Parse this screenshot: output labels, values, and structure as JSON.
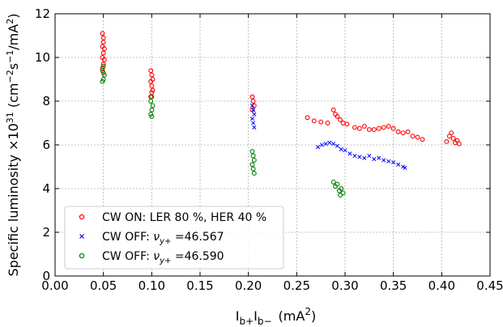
{
  "chart_data": {
    "type": "scatter",
    "xlabel": "I_{b+}I_{b−} (mA^2)",
    "ylabel": "Specific luminosity ×10^31 (cm^{−2}s^{−1}/mA^2)",
    "xlabel_parts": {
      "main": "I",
      "sub1": "b+",
      "mid": "I",
      "sub2": "b−",
      "unit": "(mA",
      "sup": "2",
      "close": ")"
    },
    "ylabel_parts": {
      "pre": "Specific luminosity ×10",
      "exp": "31",
      "unit": " (cm",
      "e1": "−2",
      "s": "s",
      "e2": "−1",
      "end": "/mA",
      "e3": "2",
      "close": ")"
    },
    "xlim": [
      0.0,
      0.45
    ],
    "ylim": [
      0,
      12
    ],
    "xticks": [
      "0.00",
      "0.05",
      "0.10",
      "0.15",
      "0.20",
      "0.25",
      "0.30",
      "0.35",
      "0.40",
      "0.45"
    ],
    "yticks": [
      "0",
      "2",
      "4",
      "6",
      "8",
      "10",
      "12"
    ],
    "grid": true,
    "legend_position": "lower-left",
    "series": [
      {
        "name": "CW ON: LER 80 %, HER 40 %",
        "color": "#ff0000",
        "marker": "circle",
        "points": [
          [
            0.049,
            11.1
          ],
          [
            0.05,
            10.9
          ],
          [
            0.05,
            10.7
          ],
          [
            0.049,
            10.5
          ],
          [
            0.051,
            10.4
          ],
          [
            0.05,
            10.2
          ],
          [
            0.049,
            10.0
          ],
          [
            0.051,
            9.9
          ],
          [
            0.05,
            9.7
          ],
          [
            0.049,
            9.5
          ],
          [
            0.05,
            9.3
          ],
          [
            0.099,
            9.4
          ],
          [
            0.1,
            9.2
          ],
          [
            0.101,
            9.0
          ],
          [
            0.099,
            8.9
          ],
          [
            0.1,
            8.7
          ],
          [
            0.101,
            8.5
          ],
          [
            0.1,
            8.4
          ],
          [
            0.099,
            8.2
          ],
          [
            0.204,
            8.2
          ],
          [
            0.205,
            8.0
          ],
          [
            0.206,
            7.8
          ],
          [
            0.204,
            7.6
          ],
          [
            0.261,
            7.25
          ],
          [
            0.268,
            7.1
          ],
          [
            0.275,
            7.05
          ],
          [
            0.282,
            7.0
          ],
          [
            0.288,
            7.6
          ],
          [
            0.29,
            7.4
          ],
          [
            0.292,
            7.3
          ],
          [
            0.295,
            7.15
          ],
          [
            0.298,
            7.0
          ],
          [
            0.302,
            6.95
          ],
          [
            0.31,
            6.8
          ],
          [
            0.315,
            6.75
          ],
          [
            0.32,
            6.85
          ],
          [
            0.325,
            6.7
          ],
          [
            0.33,
            6.7
          ],
          [
            0.335,
            6.75
          ],
          [
            0.34,
            6.8
          ],
          [
            0.345,
            6.85
          ],
          [
            0.35,
            6.75
          ],
          [
            0.355,
            6.6
          ],
          [
            0.36,
            6.55
          ],
          [
            0.365,
            6.6
          ],
          [
            0.37,
            6.4
          ],
          [
            0.375,
            6.35
          ],
          [
            0.38,
            6.25
          ],
          [
            0.405,
            6.15
          ],
          [
            0.408,
            6.4
          ],
          [
            0.41,
            6.55
          ],
          [
            0.412,
            6.3
          ],
          [
            0.414,
            6.1
          ],
          [
            0.416,
            6.2
          ],
          [
            0.418,
            6.05
          ]
        ]
      },
      {
        "name": "CW OFF: ν_{y+}=46.567",
        "color": "#0000ff",
        "marker": "x",
        "points": [
          [
            0.204,
            7.8
          ],
          [
            0.205,
            7.6
          ],
          [
            0.206,
            7.4
          ],
          [
            0.204,
            7.2
          ],
          [
            0.205,
            7.0
          ],
          [
            0.206,
            6.8
          ],
          [
            0.272,
            5.9
          ],
          [
            0.276,
            6.0
          ],
          [
            0.28,
            6.05
          ],
          [
            0.284,
            6.1
          ],
          [
            0.288,
            6.05
          ],
          [
            0.292,
            5.95
          ],
          [
            0.296,
            5.8
          ],
          [
            0.3,
            5.75
          ],
          [
            0.305,
            5.6
          ],
          [
            0.31,
            5.5
          ],
          [
            0.315,
            5.45
          ],
          [
            0.32,
            5.4
          ],
          [
            0.325,
            5.5
          ],
          [
            0.33,
            5.35
          ],
          [
            0.335,
            5.4
          ],
          [
            0.34,
            5.3
          ],
          [
            0.345,
            5.25
          ],
          [
            0.35,
            5.2
          ],
          [
            0.355,
            5.1
          ],
          [
            0.36,
            5.0
          ],
          [
            0.362,
            4.95
          ]
        ]
      },
      {
        "name": "CW OFF: ν_{y+}=46.590",
        "color": "#008000",
        "marker": "circle",
        "points": [
          [
            0.05,
            9.6
          ],
          [
            0.049,
            9.4
          ],
          [
            0.051,
            9.2
          ],
          [
            0.05,
            9.0
          ],
          [
            0.049,
            8.9
          ],
          [
            0.1,
            8.2
          ],
          [
            0.099,
            8.0
          ],
          [
            0.101,
            7.8
          ],
          [
            0.1,
            7.6
          ],
          [
            0.099,
            7.4
          ],
          [
            0.1,
            7.3
          ],
          [
            0.204,
            5.7
          ],
          [
            0.205,
            5.5
          ],
          [
            0.206,
            5.3
          ],
          [
            0.204,
            5.1
          ],
          [
            0.205,
            4.9
          ],
          [
            0.206,
            4.7
          ],
          [
            0.288,
            4.3
          ],
          [
            0.29,
            4.1
          ],
          [
            0.292,
            4.2
          ],
          [
            0.294,
            3.9
          ],
          [
            0.296,
            4.0
          ],
          [
            0.298,
            3.8
          ],
          [
            0.295,
            3.7
          ]
        ]
      }
    ]
  }
}
